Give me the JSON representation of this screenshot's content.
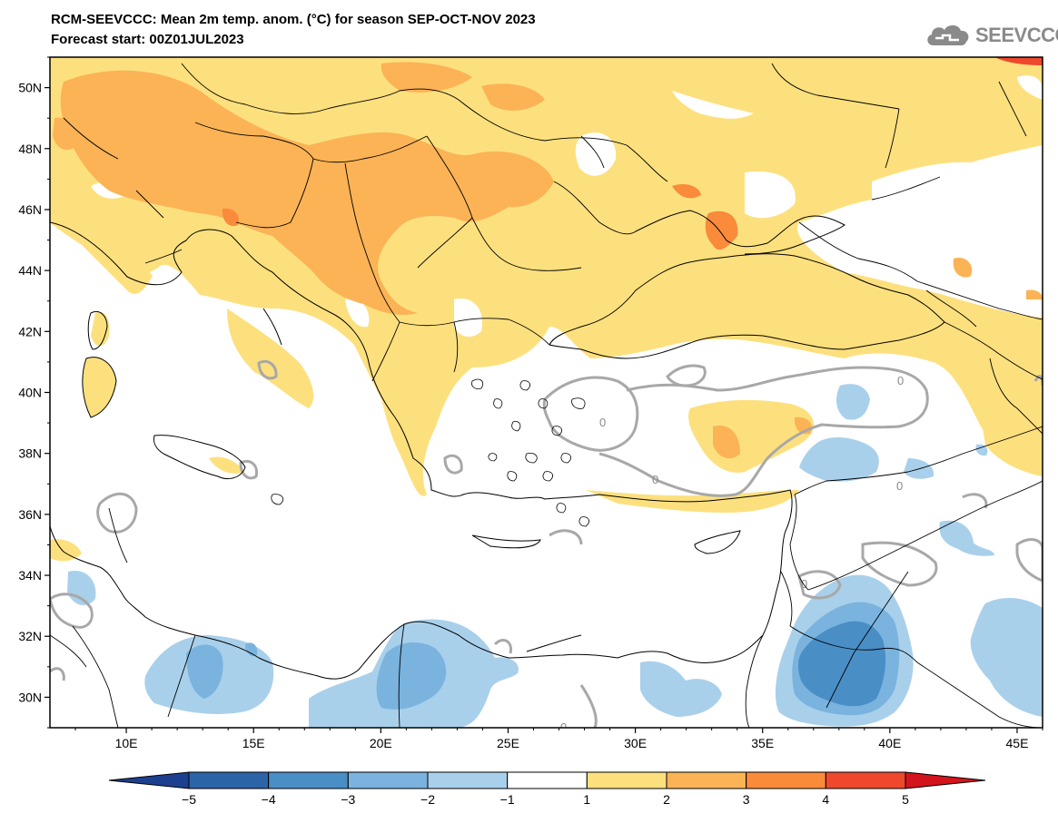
{
  "title_line1": "RCM-SEEVCCC: Mean 2m temp. anom. (°C) for season SEP-OCT-NOV 2023",
  "title_line2": "Forecast start: 00Z01JUL2023",
  "logo_text": "SEEVCCC",
  "map": {
    "lon_range": [
      7,
      46
    ],
    "lat_range": [
      29,
      51
    ],
    "lon_ticks": [
      "10E",
      "15E",
      "20E",
      "25E",
      "30E",
      "35E",
      "40E",
      "45E"
    ],
    "lat_ticks": [
      "30N",
      "32N",
      "34N",
      "36N",
      "38N",
      "40N",
      "42N",
      "44N",
      "46N",
      "48N",
      "50N"
    ],
    "contour_label": "0"
  },
  "colorbar": {
    "labels": [
      "−5",
      "−4",
      "−3",
      "−2",
      "−1",
      "1",
      "2",
      "3",
      "4",
      "5"
    ],
    "colors": [
      "#1d3f8f",
      "#2c64a8",
      "#4a8ec6",
      "#7ab3de",
      "#a9d0eb",
      "#ffffff",
      "#fde07e",
      "#fbb356",
      "#f98b3a",
      "#f0482d",
      "#d4141c"
    ]
  },
  "palette": {
    "anom_1_2": "#fde07e",
    "anom_2_3": "#fbb356",
    "anom_3_4": "#f98b3a",
    "anom_4_5": "#f0482d",
    "anom_m1_m2": "#a9d0eb",
    "anom_m2_m3": "#7ab3de",
    "anom_m3_m4": "#4a8ec6",
    "contour_zero": "#a8a8a8",
    "boundary": "#000000"
  }
}
